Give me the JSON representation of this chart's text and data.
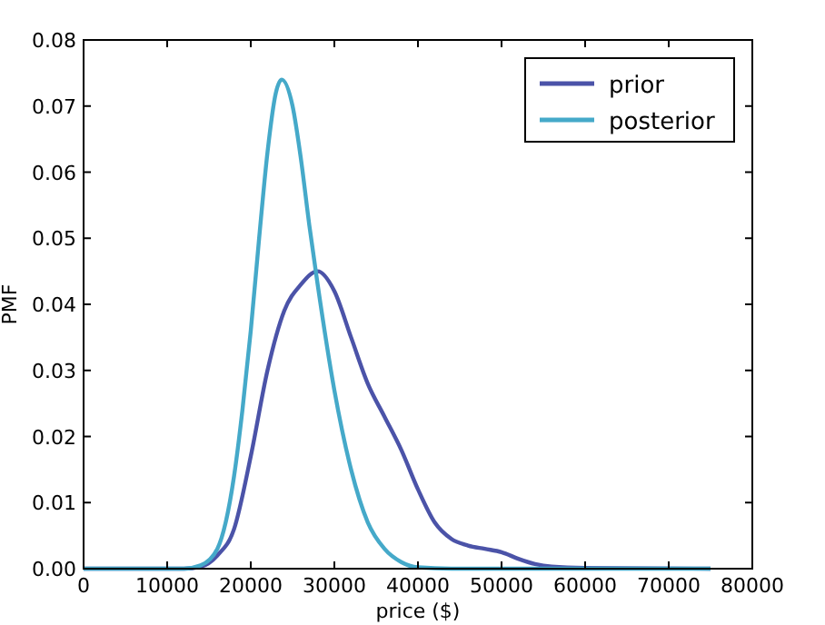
{
  "chart_data": {
    "type": "line",
    "xlabel": "price ($)",
    "ylabel": "PMF",
    "xlim": [
      0,
      80000
    ],
    "ylim": [
      0,
      0.08
    ],
    "xticks": [
      0,
      10000,
      20000,
      30000,
      40000,
      50000,
      60000,
      70000,
      80000
    ],
    "yticks": [
      {
        "value": 0,
        "label": "0.00"
      },
      {
        "value": 0.01,
        "label": "0.01"
      },
      {
        "value": 0.02,
        "label": "0.02"
      },
      {
        "value": 0.03,
        "label": "0.03"
      },
      {
        "value": 0.04,
        "label": "0.04"
      },
      {
        "value": 0.05,
        "label": "0.05"
      },
      {
        "value": 0.06,
        "label": "0.06"
      },
      {
        "value": 0.07,
        "label": "0.07"
      },
      {
        "value": 0.08,
        "label": "0.08"
      }
    ],
    "legend": "top right",
    "grid": false,
    "line_style": "solid",
    "series": [
      {
        "name": "prior",
        "color": "#4b53a8",
        "x": [
          0,
          12000,
          14000,
          16000,
          18000,
          20000,
          22000,
          24000,
          26000,
          28000,
          30000,
          32000,
          34000,
          36000,
          38000,
          40000,
          42000,
          44000,
          46000,
          48000,
          50000,
          52000,
          54000,
          56000,
          60000,
          75000
        ],
        "values": [
          0,
          0,
          0.0003,
          0.002,
          0.006,
          0.017,
          0.03,
          0.039,
          0.043,
          0.045,
          0.042,
          0.035,
          0.028,
          0.023,
          0.018,
          0.012,
          0.007,
          0.0045,
          0.0035,
          0.003,
          0.0025,
          0.0015,
          0.0007,
          0.0003,
          0.0001,
          0
        ]
      },
      {
        "name": "posterior",
        "color": "#45a9c9",
        "x": [
          0,
          12000,
          14000,
          16000,
          17000,
          18000,
          19000,
          20000,
          21000,
          22000,
          23000,
          23700,
          25000,
          26000,
          27000,
          28000,
          30000,
          32000,
          34000,
          36000,
          38000,
          40000,
          44000,
          75000
        ],
        "values": [
          0,
          0,
          0.0005,
          0.003,
          0.007,
          0.014,
          0.024,
          0.036,
          0.05,
          0.063,
          0.072,
          0.074,
          0.07,
          0.062,
          0.052,
          0.043,
          0.027,
          0.015,
          0.007,
          0.003,
          0.001,
          0.0002,
          0,
          0
        ]
      }
    ]
  }
}
